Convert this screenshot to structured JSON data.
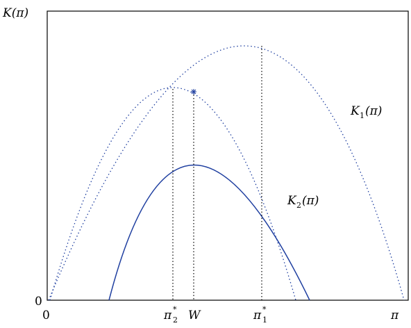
{
  "labels": {
    "y_axis": "K(π)",
    "x_axis_end": "π",
    "origin_y": "0",
    "origin_x": "0",
    "pi2_star_main": "π",
    "pi2_star_sub": "2",
    "pi2_star_sup": "*",
    "w": "W",
    "pi1_star_main": "π",
    "pi1_star_sub": "1",
    "pi1_star_sup": "*",
    "k1_main": "K",
    "k1_sub": "1",
    "k1_arg": "(π)",
    "k2_main": "K",
    "k2_sub": "2",
    "k2_arg": "(π)"
  },
  "colors": {
    "curve": "#1f3fa0",
    "dotted": "#1f3fa0",
    "axis": "#000000"
  }
}
